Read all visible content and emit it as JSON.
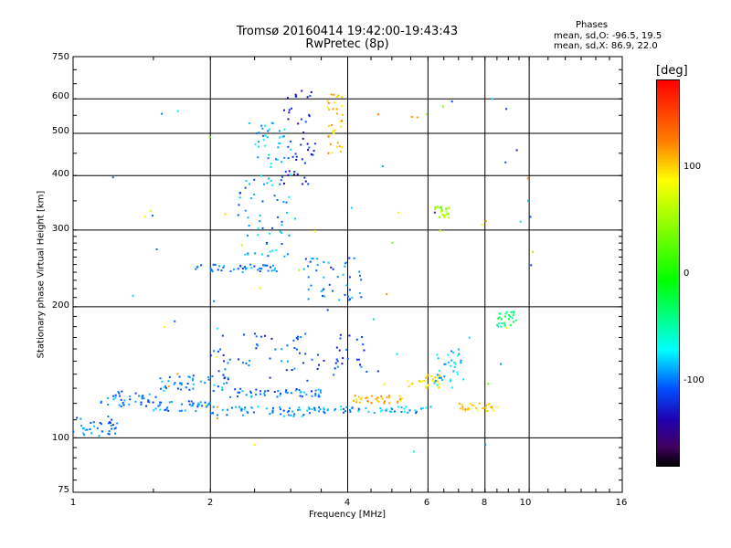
{
  "chart_data": {
    "type": "scatter",
    "title": "Tromsø 20160414 19:42:00-19:43:43",
    "subtitle": "RwPretec (8p)",
    "xlabel": "Frequency [MHz]",
    "ylabel": "Stationary phase Virtual Height [km]",
    "x_scale": "log",
    "y_scale": "log",
    "xlim": [
      1,
      16
    ],
    "ylim": [
      75,
      750
    ],
    "x_ticks": [
      "1",
      "2",
      "4",
      "6",
      "8",
      "10",
      "16"
    ],
    "y_ticks": [
      "75",
      "100",
      "200",
      "300",
      "400",
      "500",
      "600",
      "750"
    ],
    "grid": true,
    "phase_stats": {
      "header": "Phases",
      "line_o": "mean, sd,O: -96.5, 19.5",
      "line_x": "mean, sd,X:  86.9, 22.0"
    },
    "colorbar": {
      "label": "[deg]",
      "ticks": [
        "100",
        "0",
        "-100"
      ],
      "range": [
        -180,
        180
      ],
      "colors": [
        "#ff0000",
        "#ff8000",
        "#ffff00",
        "#00ff00",
        "#00ffff",
        "#0050ff",
        "#2000b0",
        "#400060",
        "#000000"
      ]
    },
    "clusters": [
      {
        "f": [
          1.0,
          1.25
        ],
        "h": [
          100,
          112
        ],
        "phase": -100
      },
      {
        "f": [
          1.15,
          1.55
        ],
        "h": [
          118,
          128
        ],
        "phase": -105
      },
      {
        "f": [
          1.5,
          2.0
        ],
        "h": [
          115,
          122
        ],
        "phase": -100
      },
      {
        "f": [
          1.55,
          2.2
        ],
        "h": [
          128,
          140
        ],
        "phase": -95
      },
      {
        "f": [
          2.0,
          3.3
        ],
        "h": [
          112,
          118
        ],
        "phase": -95
      },
      {
        "f": [
          2.2,
          3.6
        ],
        "h": [
          124,
          130
        ],
        "phase": -100
      },
      {
        "f": [
          3.3,
          6.2
        ],
        "h": [
          114,
          118
        ],
        "phase": -90
      },
      {
        "f": [
          2.0,
          4.5
        ],
        "h": [
          135,
          175
        ],
        "phase": -110
      },
      {
        "f": [
          2.3,
          3.0
        ],
        "h": [
          260,
          400
        ],
        "phase": -95
      },
      {
        "f": [
          2.5,
          3.0
        ],
        "h": [
          380,
          530
        ],
        "phase": -85
      },
      {
        "f": [
          2.9,
          3.4
        ],
        "h": [
          380,
          640
        ],
        "phase": -125
      },
      {
        "f": [
          3.6,
          3.9
        ],
        "h": [
          450,
          620
        ],
        "phase": 105
      },
      {
        "f": [
          4.1,
          5.3
        ],
        "h": [
          120,
          125
        ],
        "phase": 110
      },
      {
        "f": [
          5.4,
          6.5
        ],
        "h": [
          130,
          140
        ],
        "phase": 90
      },
      {
        "f": [
          6.2,
          7.2
        ],
        "h": [
          130,
          160
        ],
        "phase": -80
      },
      {
        "f": [
          7.0,
          8.5
        ],
        "h": [
          115,
          120
        ],
        "phase": 100
      },
      {
        "f": [
          8.5,
          9.5
        ],
        "h": [
          180,
          195
        ],
        "phase": -40
      },
      {
        "f": [
          6.2,
          6.7
        ],
        "h": [
          320,
          340
        ],
        "phase": 50
      },
      {
        "f": [
          3.2,
          4.3
        ],
        "h": [
          205,
          260
        ],
        "phase": -100
      },
      {
        "f": [
          1.8,
          2.8
        ],
        "h": [
          240,
          250
        ],
        "phase": -100
      }
    ]
  }
}
